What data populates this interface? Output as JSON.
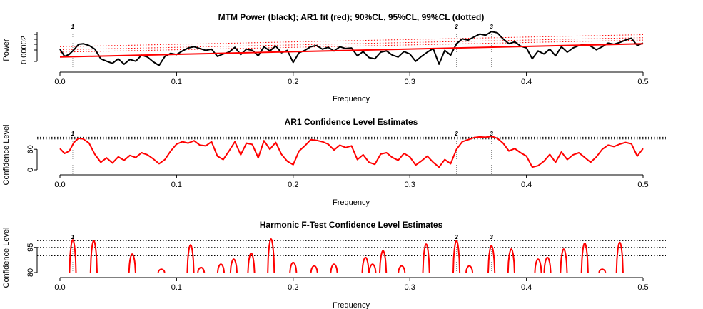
{
  "chart_data": [
    {
      "type": "line",
      "title": "MTM Power (black); AR1 fit (red); 90%CL, 95%CL, 99%CL (dotted)",
      "xlabel": "Frequency",
      "ylabel": "Power",
      "xlim": [
        0,
        0.5
      ],
      "x_ticks": [
        "0.0",
        "0.1",
        "0.2",
        "0.3",
        "0.4",
        "0.5"
      ],
      "y_ticks": [
        "0.00002"
      ],
      "peak_labels": [
        "1",
        "2",
        "3"
      ],
      "peak_freqs": [
        0.011,
        0.34,
        0.37
      ],
      "series": [
        {
          "name": "MTM Power",
          "color": "#000000",
          "x": [
            0.0,
            0.004,
            0.008,
            0.012,
            0.016,
            0.02,
            0.025,
            0.03,
            0.035,
            0.04,
            0.045,
            0.05,
            0.055,
            0.06,
            0.065,
            0.07,
            0.075,
            0.08,
            0.085,
            0.09,
            0.095,
            0.1,
            0.105,
            0.11,
            0.115,
            0.12,
            0.125,
            0.13,
            0.135,
            0.14,
            0.145,
            0.15,
            0.155,
            0.16,
            0.165,
            0.17,
            0.175,
            0.18,
            0.185,
            0.19,
            0.195,
            0.2,
            0.205,
            0.21,
            0.215,
            0.22,
            0.225,
            0.23,
            0.235,
            0.24,
            0.245,
            0.25,
            0.255,
            0.26,
            0.265,
            0.27,
            0.275,
            0.28,
            0.285,
            0.29,
            0.295,
            0.3,
            0.305,
            0.31,
            0.315,
            0.32,
            0.325,
            0.33,
            0.335,
            0.34,
            0.345,
            0.35,
            0.355,
            0.36,
            0.365,
            0.37,
            0.375,
            0.38,
            0.385,
            0.39,
            0.395,
            0.4,
            0.405,
            0.41,
            0.415,
            0.42,
            0.425,
            0.43,
            0.435,
            0.44,
            0.445,
            0.45,
            0.455,
            0.46,
            0.465,
            0.47,
            0.475,
            0.48,
            0.485,
            0.49,
            0.495,
            0.5
          ],
          "values": [
            0.62,
            0.38,
            0.45,
            0.6,
            0.78,
            0.8,
            0.74,
            0.62,
            0.3,
            0.22,
            0.15,
            0.3,
            0.12,
            0.28,
            0.22,
            0.42,
            0.36,
            0.2,
            0.08,
            0.38,
            0.48,
            0.44,
            0.56,
            0.66,
            0.7,
            0.64,
            0.58,
            0.62,
            0.38,
            0.46,
            0.52,
            0.68,
            0.44,
            0.62,
            0.58,
            0.4,
            0.7,
            0.56,
            0.72,
            0.5,
            0.58,
            0.18,
            0.5,
            0.58,
            0.7,
            0.74,
            0.62,
            0.68,
            0.56,
            0.7,
            0.64,
            0.66,
            0.4,
            0.54,
            0.34,
            0.3,
            0.52,
            0.56,
            0.42,
            0.36,
            0.54,
            0.46,
            0.22,
            0.38,
            0.52,
            0.64,
            0.12,
            0.58,
            0.42,
            0.8,
            0.96,
            0.92,
            1.02,
            1.12,
            1.08,
            1.2,
            1.16,
            0.96,
            0.8,
            0.86,
            0.72,
            0.66,
            0.3,
            0.56,
            0.46,
            0.62,
            0.4,
            0.7,
            0.52,
            0.66,
            0.74,
            0.78,
            0.72,
            0.6,
            0.7,
            0.82,
            0.78,
            0.84,
            0.92,
            0.98,
            0.74,
            0.82
          ]
        },
        {
          "name": "AR1 fit",
          "color": "#ff0000",
          "x": [
            0.0,
            0.5
          ],
          "values": [
            0.36,
            0.8
          ]
        },
        {
          "name": "90%CL",
          "color": "#ff0000",
          "style": "dotted",
          "x": [
            0.0,
            0.5
          ],
          "values": [
            0.52,
            0.92
          ]
        },
        {
          "name": "95%CL",
          "color": "#ff0000",
          "style": "dotted",
          "x": [
            0.0,
            0.5
          ],
          "values": [
            0.6,
            1.0
          ]
        },
        {
          "name": "99%CL",
          "color": "#ff0000",
          "style": "dotted",
          "x": [
            0.0,
            0.5
          ],
          "values": [
            0.7,
            1.1
          ]
        }
      ]
    },
    {
      "type": "line",
      "title": "AR1 Confidence Level Estimates",
      "xlabel": "Frequency",
      "ylabel": "Confidence Level",
      "xlim": [
        0,
        0.5
      ],
      "ylim": [
        0,
        100
      ],
      "x_ticks": [
        "0.0",
        "0.1",
        "0.2",
        "0.3",
        "0.4",
        "0.5"
      ],
      "y_ticks": [
        "0",
        "60"
      ],
      "y_tick_values": [
        0,
        60
      ],
      "reference_lines": [
        90,
        95,
        99
      ],
      "peak_labels": [
        "1",
        "2",
        "3"
      ],
      "peak_freqs": [
        0.011,
        0.34,
        0.37
      ],
      "series": [
        {
          "name": "AR1 Confidence Level",
          "color": "#ff0000",
          "x": [
            0.0,
            0.004,
            0.008,
            0.012,
            0.016,
            0.02,
            0.025,
            0.03,
            0.035,
            0.04,
            0.045,
            0.05,
            0.055,
            0.06,
            0.065,
            0.07,
            0.075,
            0.08,
            0.085,
            0.09,
            0.095,
            0.1,
            0.105,
            0.11,
            0.115,
            0.12,
            0.125,
            0.13,
            0.135,
            0.14,
            0.145,
            0.15,
            0.155,
            0.16,
            0.165,
            0.17,
            0.175,
            0.18,
            0.185,
            0.19,
            0.195,
            0.2,
            0.205,
            0.21,
            0.215,
            0.22,
            0.225,
            0.23,
            0.235,
            0.24,
            0.245,
            0.25,
            0.255,
            0.26,
            0.265,
            0.27,
            0.275,
            0.28,
            0.285,
            0.29,
            0.295,
            0.3,
            0.305,
            0.31,
            0.315,
            0.32,
            0.325,
            0.33,
            0.335,
            0.34,
            0.345,
            0.35,
            0.355,
            0.36,
            0.365,
            0.37,
            0.375,
            0.38,
            0.385,
            0.39,
            0.395,
            0.4,
            0.405,
            0.41,
            0.415,
            0.42,
            0.425,
            0.43,
            0.435,
            0.44,
            0.445,
            0.45,
            0.455,
            0.46,
            0.465,
            0.47,
            0.475,
            0.48,
            0.485,
            0.49,
            0.495,
            0.5
          ],
          "values": [
            62,
            48,
            55,
            80,
            92,
            90,
            78,
            45,
            22,
            35,
            20,
            38,
            28,
            42,
            36,
            50,
            44,
            32,
            18,
            30,
            55,
            75,
            82,
            78,
            85,
            72,
            70,
            82,
            40,
            30,
            55,
            82,
            44,
            78,
            74,
            35,
            85,
            60,
            80,
            45,
            25,
            15,
            55,
            70,
            88,
            86,
            82,
            75,
            58,
            72,
            65,
            70,
            30,
            44,
            22,
            16,
            46,
            50,
            36,
            28,
            48,
            38,
            14,
            26,
            40,
            22,
            8,
            30,
            18,
            60,
            82,
            88,
            94,
            96,
            95,
            98,
            92,
            78,
            55,
            62,
            50,
            40,
            8,
            12,
            25,
            45,
            22,
            52,
            30,
            44,
            50,
            36,
            22,
            38,
            60,
            72,
            68,
            75,
            80,
            76,
            40,
            62
          ]
        }
      ]
    },
    {
      "type": "line",
      "title": "Harmonic F-Test Confidence Level Estimates",
      "xlabel": "Frequency",
      "ylabel": "Confidence Level",
      "xlim": [
        0,
        0.5
      ],
      "ylim": [
        80,
        100
      ],
      "x_ticks": [
        "0.0",
        "0.1",
        "0.2",
        "0.3",
        "0.4",
        "0.5"
      ],
      "y_ticks": [
        "80",
        "95"
      ],
      "y_tick_values": [
        80,
        95
      ],
      "reference_lines": [
        90,
        95,
        99
      ],
      "peak_labels": [
        "1",
        "2",
        "3"
      ],
      "peak_freqs": [
        0.011,
        0.34,
        0.37
      ],
      "series": [
        {
          "name": "Harmonic F-Test Confidence Level",
          "color": "#ff0000",
          "peaks": [
            {
              "f": 0.011,
              "h": 99.5
            },
            {
              "f": 0.029,
              "h": 99
            },
            {
              "f": 0.062,
              "h": 91
            },
            {
              "f": 0.087,
              "h": 82
            },
            {
              "f": 0.112,
              "h": 96.5
            },
            {
              "f": 0.121,
              "h": 83
            },
            {
              "f": 0.138,
              "h": 85
            },
            {
              "f": 0.149,
              "h": 88
            },
            {
              "f": 0.164,
              "h": 91.5
            },
            {
              "f": 0.181,
              "h": 100
            },
            {
              "f": 0.2,
              "h": 86
            },
            {
              "f": 0.218,
              "h": 84
            },
            {
              "f": 0.235,
              "h": 85
            },
            {
              "f": 0.262,
              "h": 89
            },
            {
              "f": 0.268,
              "h": 85
            },
            {
              "f": 0.277,
              "h": 93
            },
            {
              "f": 0.293,
              "h": 84
            },
            {
              "f": 0.314,
              "h": 97
            },
            {
              "f": 0.34,
              "h": 99
            },
            {
              "f": 0.351,
              "h": 84
            },
            {
              "f": 0.37,
              "h": 96
            },
            {
              "f": 0.387,
              "h": 94
            },
            {
              "f": 0.41,
              "h": 88
            },
            {
              "f": 0.418,
              "h": 89
            },
            {
              "f": 0.432,
              "h": 94
            },
            {
              "f": 0.45,
              "h": 97.5
            },
            {
              "f": 0.465,
              "h": 82
            },
            {
              "f": 0.48,
              "h": 98
            }
          ]
        }
      ]
    }
  ]
}
